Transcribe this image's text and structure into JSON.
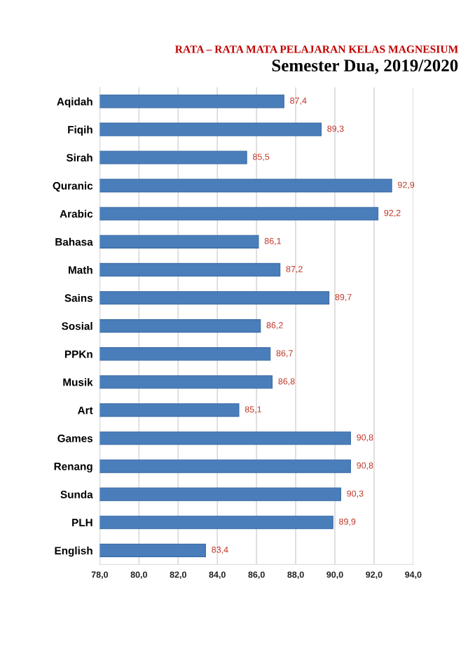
{
  "chart_data": {
    "type": "bar",
    "orientation": "horizontal",
    "title": "RATA – RATA MATA PELAJARAN KELAS MAGNESIUM",
    "subtitle": "Semester Dua, 2019/2020",
    "categories": [
      "Aqidah",
      "Fiqih",
      "Sirah",
      "Quranic",
      "Arabic",
      "Bahasa",
      "Math",
      "Sains",
      "Sosial",
      "PPKn",
      "Musik",
      "Art",
      "Games",
      "Renang",
      "Sunda",
      "PLH",
      "English"
    ],
    "values": [
      87.4,
      89.3,
      85.5,
      92.9,
      92.2,
      86.1,
      87.2,
      89.7,
      86.2,
      86.7,
      86.8,
      85.1,
      90.8,
      90.8,
      90.3,
      89.9,
      83.4
    ],
    "value_labels": [
      "87,4",
      "89,3",
      "85,5",
      "92,9",
      "92,2",
      "86,1",
      "87,2",
      "89,7",
      "86,2",
      "86,7",
      "86,8",
      "85,1",
      "90,8",
      "90,8",
      "90,3",
      "89,9",
      "83,4"
    ],
    "color": "#4a7ebb",
    "xlim": [
      78,
      94
    ],
    "xticks": [
      {
        "value": 78,
        "label": "78,0"
      },
      {
        "value": 80,
        "label": "80,0"
      },
      {
        "value": 82,
        "label": "82,0"
      },
      {
        "value": 84,
        "label": "84,0"
      },
      {
        "value": 86,
        "label": "86,0"
      },
      {
        "value": 88,
        "label": "88,0"
      },
      {
        "value": 90,
        "label": "90,0"
      },
      {
        "value": 92,
        "label": "92,0"
      },
      {
        "value": 94,
        "label": "94,0"
      }
    ],
    "grid": "x",
    "legend": false
  }
}
